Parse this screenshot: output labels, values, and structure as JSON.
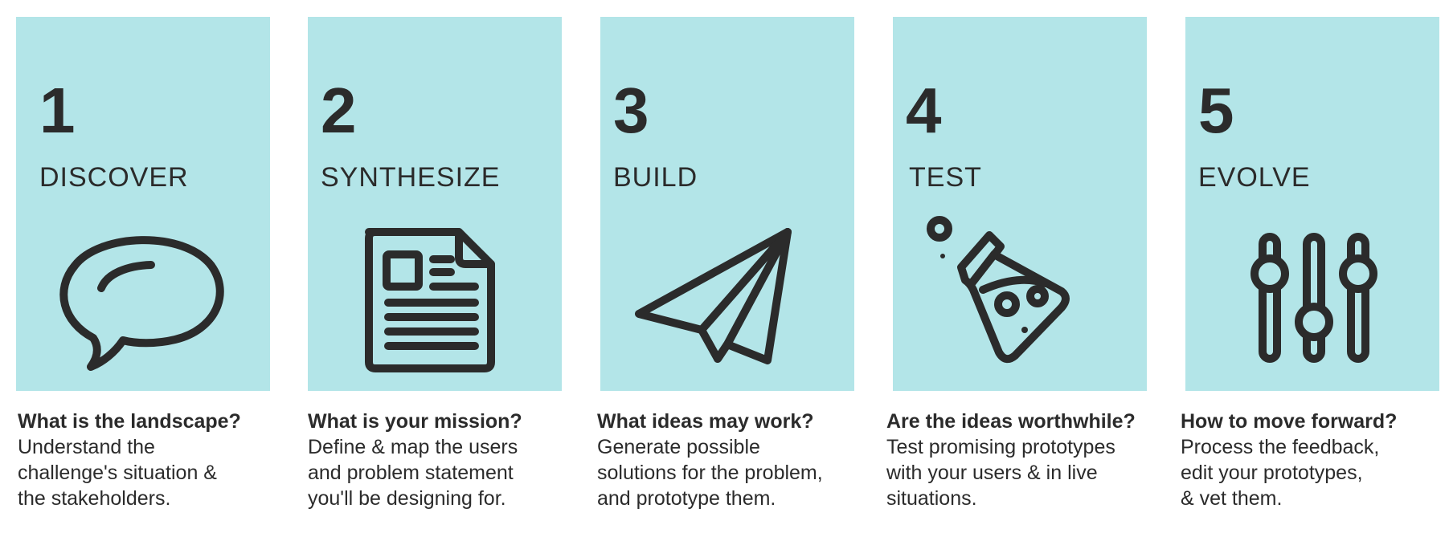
{
  "colors": {
    "card_background": "#b3e5e8",
    "ink": "#2b2b2b"
  },
  "steps": [
    {
      "number": "1",
      "title": "DISCOVER",
      "icon": "speech-bubble-icon",
      "question": "What is the landscape?",
      "lines": [
        "Understand the",
        "challenge's situation &",
        "the stakeholders."
      ]
    },
    {
      "number": "2",
      "title": "SYNTHESIZE",
      "icon": "document-icon",
      "question": "What is your mission?",
      "lines": [
        "Define & map the users",
        "and problem statement",
        "you'll be designing for."
      ]
    },
    {
      "number": "3",
      "title": "BUILD",
      "icon": "paper-plane-icon",
      "question": "What ideas may work?",
      "lines": [
        "Generate possible",
        "solutions for the problem,",
        "and prototype them."
      ]
    },
    {
      "number": "4",
      "title": "TEST",
      "icon": "flask-icon",
      "question": "Are the ideas worthwhile?",
      "lines": [
        "Test promising prototypes",
        "with your users & in live",
        "situations."
      ]
    },
    {
      "number": "5",
      "title": "EVOLVE",
      "icon": "sliders-icon",
      "question": "How to move forward?",
      "lines": [
        "Process the feedback,",
        "edit your prototypes,",
        "& vet them."
      ]
    }
  ]
}
